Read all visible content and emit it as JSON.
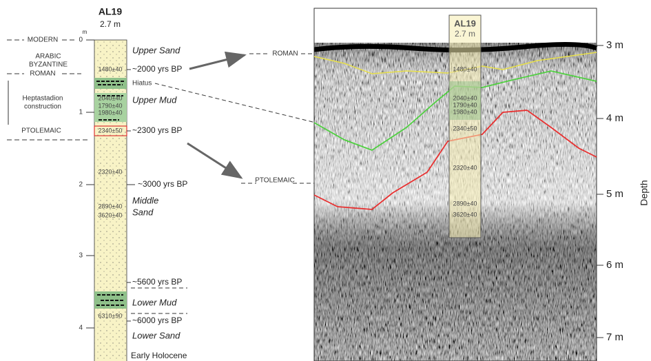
{
  "core": {
    "name": "AL19",
    "length": "2.7 m",
    "unit": "m",
    "scale": [
      "0",
      "1",
      "2",
      "3",
      "4"
    ]
  },
  "periods": [
    "MODERN",
    "ARABIC",
    "BYZANTINE",
    "ROMAN",
    "Heptastadion",
    "construction",
    "PTOLEMAIC"
  ],
  "dates": [
    "1480±40",
    "2040±40",
    "1790±40",
    "1980±40",
    "2340±50",
    "2320±40",
    "2890±40",
    "3620±40",
    "6310±90"
  ],
  "ages": [
    "~2000 yrs BP",
    "Hiatus",
    "~2300 yrs BP",
    "~3000 yrs BP",
    "~5600 yrs BP",
    "~6000 yrs BP"
  ],
  "units": [
    "Upper Sand",
    "Upper Mud",
    "Middle",
    "Sand",
    "Lower Mud",
    "Lower Sand",
    "Early Holocene"
  ],
  "gpr": {
    "labels": [
      "ROMAN",
      "PTOLEMAIC"
    ],
    "core_name": "AL19",
    "core_length": "2.7 m",
    "dates": [
      "1480±40",
      "2040±40",
      "1790±40",
      "1980±40",
      "2340±50",
      "2320±40",
      "2890±40",
      "3620±40"
    ],
    "depths": [
      "3 m",
      "4 m",
      "5 m",
      "6 m",
      "7 m"
    ],
    "axis_label": "Depth"
  }
}
